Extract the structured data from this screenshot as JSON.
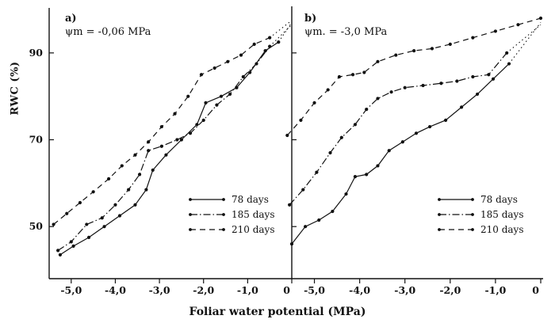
{
  "figure": {
    "ylabel": "RWC (%)",
    "xlabel": "Foliar water potential (MPa)",
    "y_ticks": [
      50,
      70,
      90
    ],
    "x_ticks": [
      -5,
      -4,
      -3,
      -2,
      -1,
      0
    ],
    "x_tick_labels": [
      "-5,0",
      "-4,0",
      "-3,0",
      "-2,0",
      "-1,0",
      "0"
    ],
    "line_color": "#111111"
  },
  "chart_data": [
    {
      "type": "line",
      "panel_label": "a)",
      "annotation": "ψm = -0,06 MPa",
      "xlabel": "Foliar water potential (MPa)",
      "ylabel": "RWC (%)",
      "xlim": [
        -5.5,
        0
      ],
      "ylim": [
        38,
        100
      ],
      "grid": false,
      "legend_position": "lower right",
      "series": [
        {
          "name": "78 days",
          "style": "solid",
          "tail_dotted": true,
          "points": [
            [
              -5.25,
              43.5
            ],
            [
              -4.95,
              45.5
            ],
            [
              -4.6,
              47.5
            ],
            [
              -4.25,
              50
            ],
            [
              -3.9,
              52.5
            ],
            [
              -3.55,
              55
            ],
            [
              -3.3,
              58.5
            ],
            [
              -3.15,
              63
            ],
            [
              -2.85,
              66.5
            ],
            [
              -2.5,
              70
            ],
            [
              -2.15,
              73.5
            ],
            [
              -1.95,
              78.5
            ],
            [
              -1.6,
              80
            ],
            [
              -1.25,
              82
            ],
            [
              -0.95,
              85.5
            ],
            [
              -0.6,
              90.5
            ],
            [
              -0.3,
              92.5
            ],
            [
              0,
              97
            ]
          ]
        },
        {
          "name": "185 days",
          "style": "dashdot",
          "tail_dotted": true,
          "points": [
            [
              -5.3,
              44.5
            ],
            [
              -5.0,
              46.5
            ],
            [
              -4.65,
              50.5
            ],
            [
              -4.3,
              52
            ],
            [
              -4.0,
              55
            ],
            [
              -3.7,
              58.5
            ],
            [
              -3.45,
              62
            ],
            [
              -3.25,
              67.5
            ],
            [
              -2.95,
              68.5
            ],
            [
              -2.6,
              70
            ],
            [
              -2.3,
              71.5
            ],
            [
              -2.0,
              74.5
            ],
            [
              -1.7,
              78
            ],
            [
              -1.4,
              80.5
            ],
            [
              -1.1,
              84.5
            ],
            [
              -0.8,
              87.5
            ],
            [
              -0.5,
              91.5
            ],
            [
              0,
              96.5
            ]
          ]
        },
        {
          "name": "210 days",
          "style": "dashed",
          "tail_dotted": true,
          "points": [
            [
              -5.4,
              50.5
            ],
            [
              -5.1,
              53
            ],
            [
              -4.8,
              55.5
            ],
            [
              -4.5,
              58
            ],
            [
              -4.15,
              61
            ],
            [
              -3.85,
              64
            ],
            [
              -3.55,
              66.5
            ],
            [
              -3.25,
              69.5
            ],
            [
              -2.95,
              73
            ],
            [
              -2.65,
              76
            ],
            [
              -2.35,
              80
            ],
            [
              -2.05,
              85
            ],
            [
              -1.75,
              86.5
            ],
            [
              -1.45,
              88
            ],
            [
              -1.15,
              89.5
            ],
            [
              -0.85,
              92
            ],
            [
              -0.5,
              93.5
            ],
            [
              0,
              97.5
            ]
          ]
        }
      ]
    },
    {
      "type": "line",
      "panel_label": "b)",
      "annotation": "ψm. = -3,0 MPa",
      "xlabel": "Foliar water potential (MPa)",
      "ylabel": "RWC (%)",
      "xlim": [
        -5.5,
        0
      ],
      "ylim": [
        38,
        100
      ],
      "grid": false,
      "legend_position": "lower right",
      "series": [
        {
          "name": "78 days",
          "style": "solid",
          "tail_dotted": true,
          "points": [
            [
              -5.5,
              46
            ],
            [
              -5.2,
              50
            ],
            [
              -4.9,
              51.5
            ],
            [
              -4.6,
              53.5
            ],
            [
              -4.3,
              57.5
            ],
            [
              -4.1,
              61.5
            ],
            [
              -3.85,
              62
            ],
            [
              -3.6,
              64
            ],
            [
              -3.35,
              67.5
            ],
            [
              -3.05,
              69.5
            ],
            [
              -2.75,
              71.5
            ],
            [
              -2.45,
              73
            ],
            [
              -2.1,
              74.5
            ],
            [
              -1.75,
              77.5
            ],
            [
              -1.4,
              80.5
            ],
            [
              -1.05,
              84
            ],
            [
              -0.7,
              87.5
            ],
            [
              0,
              97
            ]
          ]
        },
        {
          "name": "185 days",
          "style": "dashdot",
          "tail_dotted": true,
          "points": [
            [
              -5.55,
              55
            ],
            [
              -5.25,
              58.5
            ],
            [
              -4.95,
              62.5
            ],
            [
              -4.65,
              67
            ],
            [
              -4.4,
              70.5
            ],
            [
              -4.1,
              73.5
            ],
            [
              -3.85,
              77
            ],
            [
              -3.6,
              79.5
            ],
            [
              -3.3,
              81
            ],
            [
              -3.0,
              82
            ],
            [
              -2.6,
              82.5
            ],
            [
              -2.2,
              83
            ],
            [
              -1.85,
              83.5
            ],
            [
              -1.5,
              84.5
            ],
            [
              -1.15,
              85
            ],
            [
              -0.75,
              90
            ],
            [
              0,
              96.5
            ]
          ]
        },
        {
          "name": "210 days",
          "style": "dashed",
          "tail_dotted": false,
          "points": [
            [
              -5.6,
              71
            ],
            [
              -5.3,
              74.5
            ],
            [
              -5.0,
              78.5
            ],
            [
              -4.7,
              81.5
            ],
            [
              -4.45,
              84.5
            ],
            [
              -4.15,
              85
            ],
            [
              -3.9,
              85.5
            ],
            [
              -3.6,
              88
            ],
            [
              -3.2,
              89.5
            ],
            [
              -2.8,
              90.5
            ],
            [
              -2.4,
              91
            ],
            [
              -2.0,
              92
            ],
            [
              -1.5,
              93.5
            ],
            [
              -1.0,
              95
            ],
            [
              -0.5,
              96.5
            ],
            [
              0,
              98
            ]
          ]
        }
      ]
    }
  ]
}
